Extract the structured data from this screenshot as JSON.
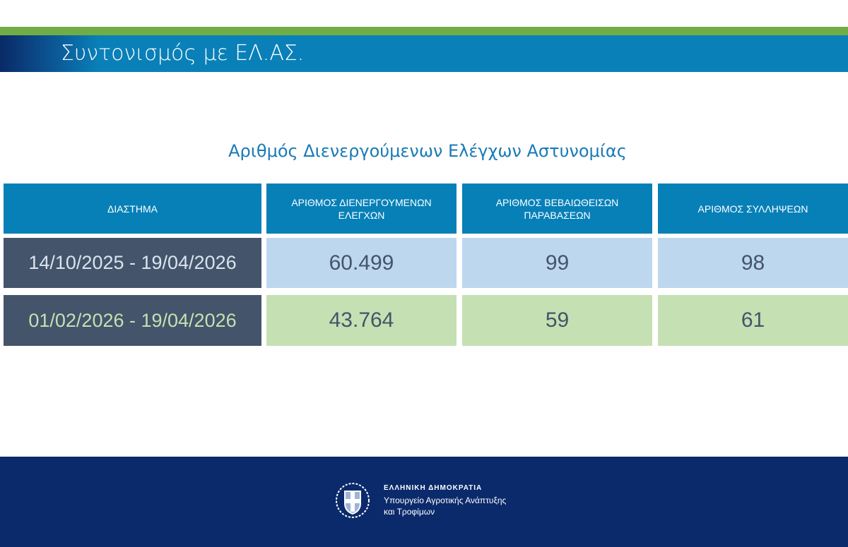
{
  "header": {
    "title": "Συντονισμός με ΕΛ.ΑΣ."
  },
  "subtitle": "Αριθμός Διενεργούμενων Ελέγχων Αστυνομίας",
  "table": {
    "headers": [
      "ΔΙΑΣΤΗΜΑ",
      "ΑΡΙΘΜΟΣ ΔΙΕΝΕΡΓΟΥΜΕΝΩΝ ΕΛΕΓΧΩΝ",
      "ΑΡΙΘΜΟΣ ΒΕΒΑΙΩΘΕΙΣΩΝ ΠΑΡΑΒΑΣΕΩΝ",
      "ΑΡΙΘΜΟΣ ΣΥΛΛΗΨΕΩΝ"
    ],
    "rows": [
      [
        "14/10/2025 - 19/04/2026",
        "60.499",
        "99",
        "98"
      ],
      [
        "01/02/2026 - 19/04/2026",
        "43.764",
        "59",
        "61"
      ]
    ]
  },
  "footer": {
    "line1": "ΕΛΛΗΝΙΚΗ ΔΗΜΟΚΡΑΤΙΑ",
    "line2": "Υπουργείο Αγροτικής Ανάπτυξης",
    "line3": "και Τροφίμων",
    "emblem": "greek-coat-of-arms"
  },
  "colors": {
    "green": "#70ad47",
    "blue": "#0780b8",
    "navy": "#0b2a6b",
    "slate": "#44546a",
    "lightblue": "#bdd7ee",
    "lightgreen": "#c5e0b3"
  }
}
